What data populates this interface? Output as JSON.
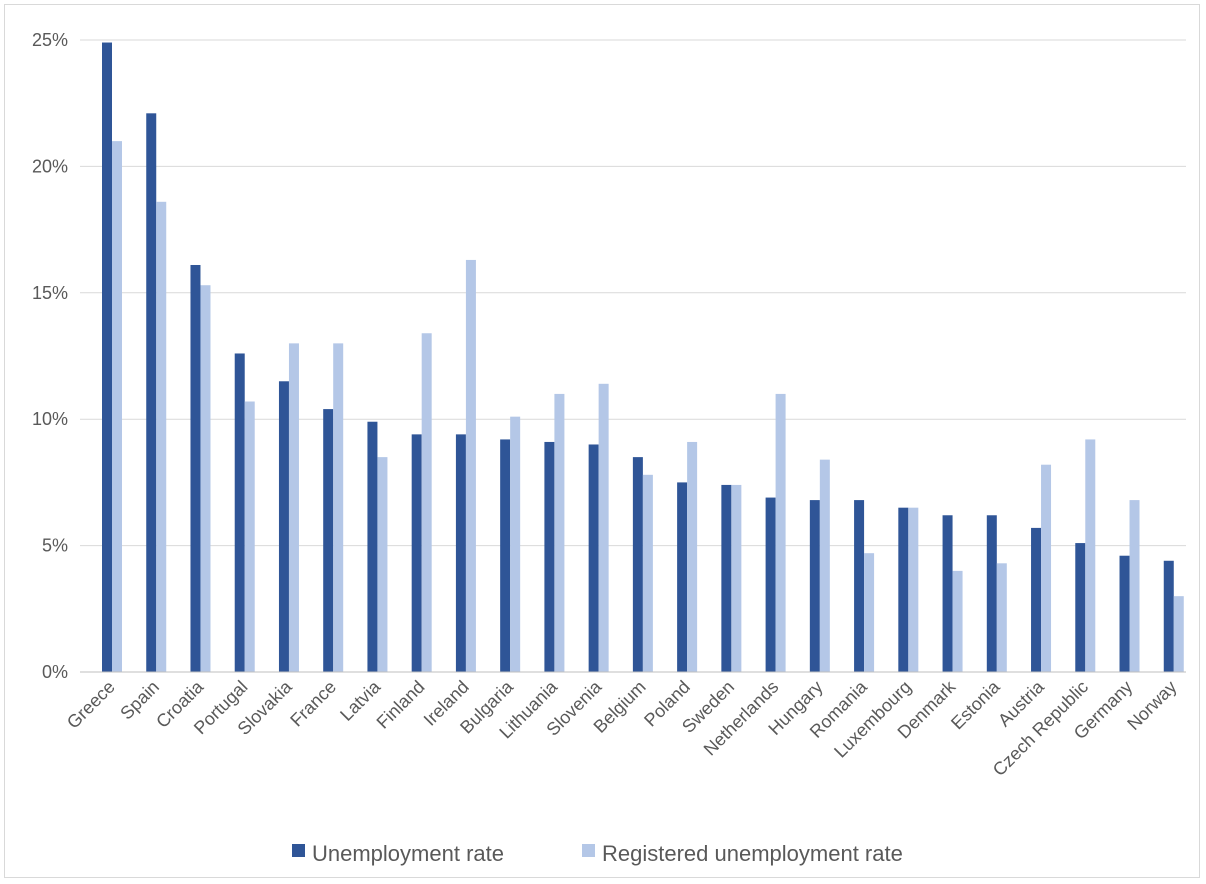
{
  "chart_data": {
    "type": "bar",
    "title": "",
    "xlabel": "",
    "ylabel": "",
    "ylim": [
      0,
      25
    ],
    "y_tick_values": [
      0,
      5,
      10,
      15,
      20,
      25
    ],
    "y_tick_labels": [
      "0%",
      "5%",
      "10%",
      "15%",
      "20%",
      "25%"
    ],
    "grid": true,
    "legend_position": "bottom",
    "categories": [
      "Greece",
      "Spain",
      "Croatia",
      "Portugal",
      "Slovakia",
      "France",
      "Latvia",
      "Finland",
      "Ireland",
      "Bulgaria",
      "Lithuania",
      "Slovenia",
      "Belgium",
      "Poland",
      "Sweden",
      "Netherlands",
      "Hungary",
      "Romania",
      "Luxembourg",
      "Denmark",
      "Estonia",
      "Austria",
      "Czech Republic",
      "Germany",
      "Norway"
    ],
    "series": [
      {
        "name": "Unemployment rate",
        "color": "#2f5597",
        "values": [
          24.9,
          22.1,
          16.1,
          12.6,
          11.5,
          10.4,
          9.9,
          9.4,
          9.4,
          9.2,
          9.1,
          9.0,
          8.5,
          7.5,
          7.4,
          6.9,
          6.8,
          6.8,
          6.5,
          6.2,
          6.2,
          5.7,
          5.1,
          4.6,
          4.4
        ]
      },
      {
        "name": "Registered unemployment rate",
        "color": "#b4c7e7",
        "values": [
          21.0,
          18.6,
          15.3,
          10.7,
          13.0,
          13.0,
          8.5,
          13.4,
          16.3,
          10.1,
          11.0,
          11.4,
          7.8,
          9.1,
          7.4,
          11.0,
          8.4,
          4.7,
          6.5,
          4.0,
          4.3,
          8.2,
          9.2,
          6.8,
          3.0
        ]
      }
    ]
  },
  "colors": {
    "gridline": "#d9d9d9",
    "axis_line": "#bfbfbf",
    "text": "#595959"
  }
}
